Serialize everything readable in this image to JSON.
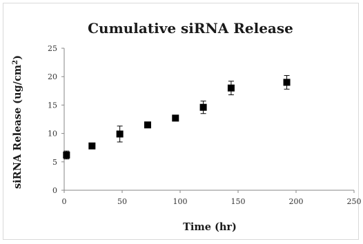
{
  "chart_data": {
    "type": "scatter",
    "title": "Cumulative siRNA Release",
    "xlabel": "Time (hr)",
    "ylabel_main": "siRNA Release (ug/cm",
    "ylabel_sup": "2",
    "ylabel_close": ")",
    "xlim": [
      0,
      250
    ],
    "ylim": [
      0,
      25
    ],
    "x_ticks": [
      "0",
      "50",
      "100",
      "150",
      "200",
      "250"
    ],
    "y_ticks": [
      "0",
      "5",
      "10",
      "15",
      "20",
      "25"
    ],
    "grid": false,
    "legend": "none",
    "marker": "square",
    "marker_color": "#000000",
    "points": [
      {
        "x": 2,
        "y": 6.2,
        "err": 0.7
      },
      {
        "x": 24,
        "y": 7.8,
        "err": 0.5
      },
      {
        "x": 48,
        "y": 9.9,
        "err": 1.4
      },
      {
        "x": 72,
        "y": 11.5,
        "err": 0.3
      },
      {
        "x": 96,
        "y": 12.7,
        "err": 0.3
      },
      {
        "x": 120,
        "y": 14.6,
        "err": 1.1
      },
      {
        "x": 144,
        "y": 18.0,
        "err": 1.2
      },
      {
        "x": 192,
        "y": 19.0,
        "err": 1.2
      }
    ]
  }
}
